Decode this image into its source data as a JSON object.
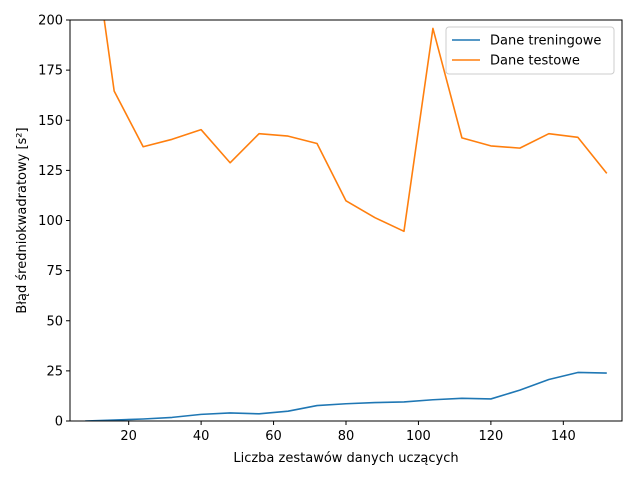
{
  "chart_data": {
    "type": "line",
    "xlabel": "Liczba zestawów danych uczących",
    "ylabel": "Błąd średniokwadratowy [s²]",
    "xlim": [
      3.8,
      156.2
    ],
    "ylim": [
      0,
      200
    ],
    "x_ticks": [
      20,
      40,
      60,
      80,
      100,
      120,
      140
    ],
    "y_ticks": [
      0,
      25,
      50,
      75,
      100,
      125,
      150,
      175,
      200
    ],
    "grid": false,
    "legend_position": "top-right",
    "x": [
      8,
      16,
      24,
      32,
      40,
      48,
      56,
      64,
      72,
      80,
      88,
      96,
      104,
      112,
      120,
      128,
      136,
      144,
      152
    ],
    "series": [
      {
        "name": "Dane treningowe",
        "color": "#1f77b4",
        "values": [
          0,
          0.5,
          1,
          1.8,
          3.3,
          4,
          3.6,
          4.9,
          7.7,
          8.6,
          9.2,
          9.5,
          10.6,
          11.3,
          11,
          15.4,
          20.7,
          24.2,
          23.9
        ]
      },
      {
        "name": "Dane testowe",
        "color": "#ff7f0e",
        "values": [
          268,
          164.5,
          136.8,
          140.5,
          145.3,
          128.8,
          143.3,
          142.1,
          138.4,
          109.8,
          101.4,
          94.6,
          195.8,
          141.2,
          137.2,
          136.1,
          143.3,
          141.5,
          123.5
        ]
      }
    ]
  }
}
